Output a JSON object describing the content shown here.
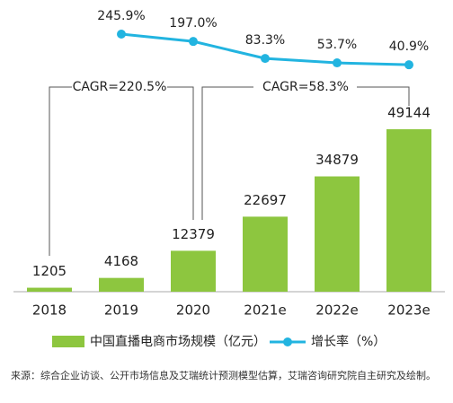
{
  "chart_data": {
    "type": "bar_line",
    "categories": [
      "2018",
      "2019",
      "2020",
      "2021e",
      "2022e",
      "2023e"
    ],
    "series": [
      {
        "name": "中国直播电商市场规模（亿元）",
        "type": "bar",
        "color": "#8dc63f",
        "values": [
          1205,
          4168,
          12379,
          22697,
          34879,
          49144
        ]
      },
      {
        "name": "增长率（%）",
        "type": "line",
        "axis": "y2",
        "color": "#22b4e0",
        "values": [
          null,
          245.9,
          197.0,
          83.3,
          53.7,
          40.9
        ],
        "value_labels": [
          null,
          "245.9%",
          "197.0%",
          "83.3%",
          "53.7%",
          "40.9%"
        ]
      }
    ],
    "ylim": [
      0,
      60000
    ],
    "y2lim": [
      0,
      300
    ],
    "annotations": [
      "CAGR=220.5%",
      "CAGR=58.3%"
    ],
    "source": "来源：综合企业访谈、公开市场信息及艾瑞统计预测模型估算，艾瑞咨询研究院自主研究及绘制。"
  }
}
